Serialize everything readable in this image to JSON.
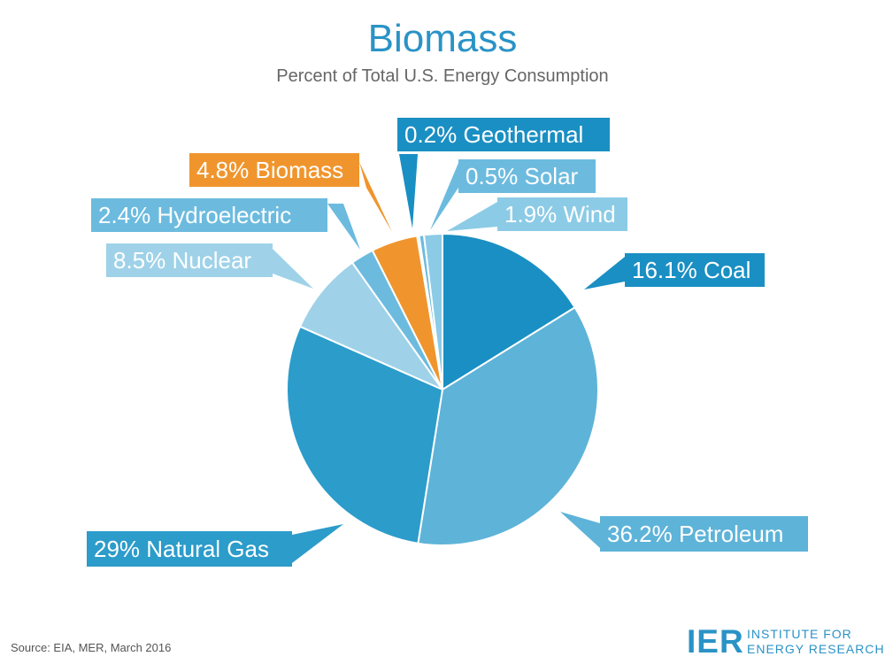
{
  "title": "Biomass",
  "subtitle": "Percent of Total U.S. Energy Consumption",
  "source": "Source: EIA, MER, March 2016",
  "logo": {
    "mark": "IER",
    "line1": "INSTITUTE FOR",
    "line2": "ENERGY RESEARCH"
  },
  "colors": {
    "title": "#2a93c6",
    "highlight": "#f0952d"
  },
  "chart_data": {
    "type": "pie",
    "title": "Biomass",
    "subtitle": "Percent of Total U.S. Energy Consumption",
    "slices": [
      {
        "label": "Coal",
        "value": 16.1,
        "text": "16.1% Coal",
        "color": "#1a8fc3"
      },
      {
        "label": "Petroleum",
        "value": 36.2,
        "text": "36.2% Petroleum",
        "color": "#5eb3d8"
      },
      {
        "label": "Natural Gas",
        "value": 29,
        "text": "29% Natural Gas",
        "color": "#2c9cca"
      },
      {
        "label": "Nuclear",
        "value": 8.5,
        "text": "8.5% Nuclear",
        "color": "#9fd2e8"
      },
      {
        "label": "Hydroelectric",
        "value": 2.4,
        "text": "2.4% Hydroelectric",
        "color": "#6cbbdf"
      },
      {
        "label": "Biomass",
        "value": 4.8,
        "text": "4.8% Biomass",
        "color": "#f0952d"
      },
      {
        "label": "Geothermal",
        "value": 0.2,
        "text": "0.2% Geothermal",
        "color": "#1a8fc3"
      },
      {
        "label": "Solar",
        "value": 0.5,
        "text": "0.5% Solar",
        "color": "#6cbbdf"
      },
      {
        "label": "Wind",
        "value": 1.9,
        "text": "1.9% Wind",
        "color": "#8ccbe6"
      }
    ]
  }
}
